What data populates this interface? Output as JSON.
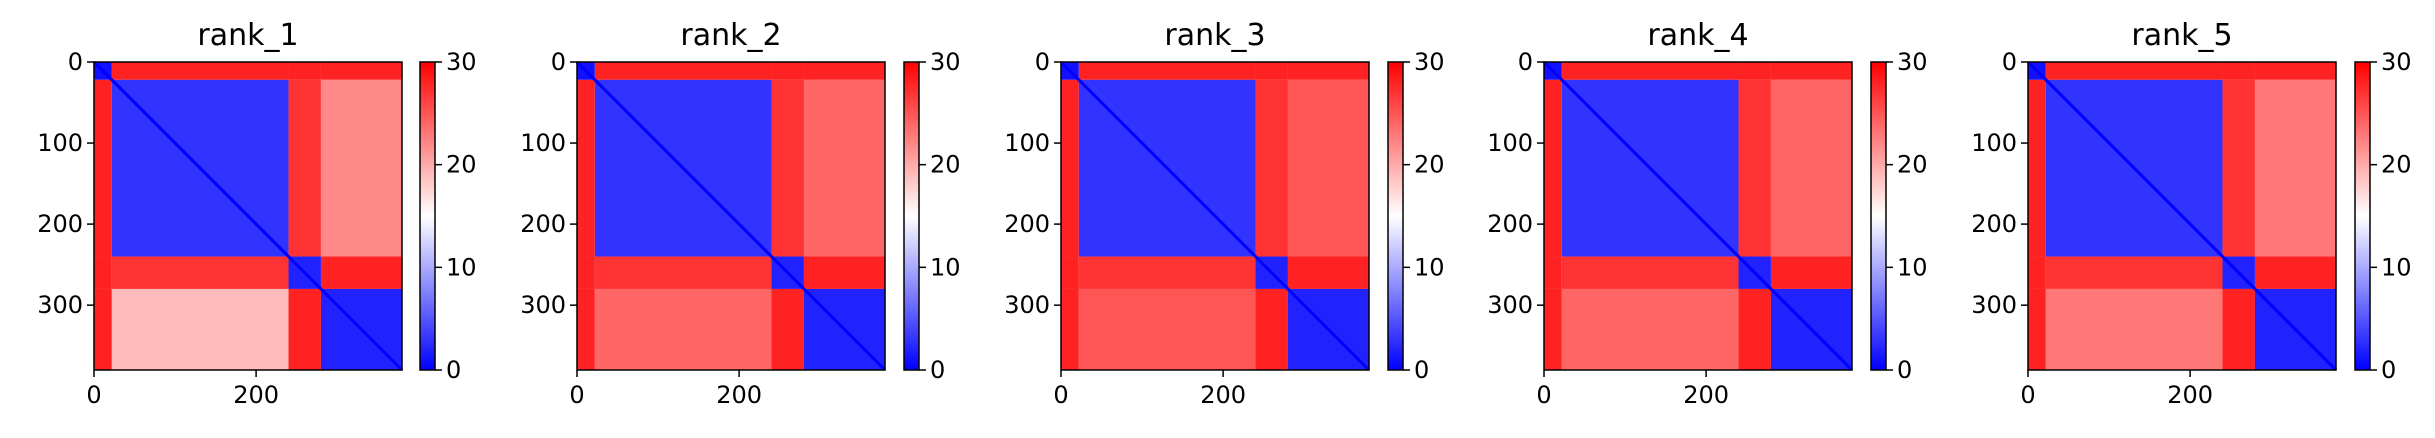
{
  "figure": {
    "colormap": "bwr",
    "colors": {
      "low": "#0000ff",
      "mid": "#ffffff",
      "high": "#ff0000"
    }
  },
  "chart_data": [
    {
      "type": "heatmap",
      "title": "rank_1",
      "size": 380,
      "xticks": [
        0,
        200
      ],
      "yticks": [
        0,
        100,
        200,
        300
      ],
      "colorbar": {
        "min": 0,
        "max": 30,
        "ticks": [
          0,
          10,
          20,
          30
        ]
      },
      "domains": [
        [
          0,
          22
        ],
        [
          22,
          240
        ],
        [
          240,
          280
        ],
        [
          280,
          380
        ]
      ],
      "block_values": [
        [
          1,
          28,
          28,
          28
        ],
        [
          28,
          3,
          27,
          22
        ],
        [
          28,
          27,
          2,
          28
        ],
        [
          28,
          19,
          28,
          2
        ]
      ]
    },
    {
      "type": "heatmap",
      "title": "rank_2",
      "size": 380,
      "xticks": [
        0,
        200
      ],
      "yticks": [
        0,
        100,
        200,
        300
      ],
      "colorbar": {
        "min": 0,
        "max": 30,
        "ticks": [
          0,
          10,
          20,
          30
        ]
      },
      "domains": [
        [
          0,
          22
        ],
        [
          22,
          240
        ],
        [
          240,
          280
        ],
        [
          280,
          380
        ]
      ],
      "block_values": [
        [
          1,
          28,
          28,
          28
        ],
        [
          28,
          3,
          27,
          24
        ],
        [
          28,
          27,
          2,
          28
        ],
        [
          28,
          24,
          28,
          2
        ]
      ]
    },
    {
      "type": "heatmap",
      "title": "rank_3",
      "size": 380,
      "xticks": [
        0,
        200
      ],
      "yticks": [
        0,
        100,
        200,
        300
      ],
      "colorbar": {
        "min": 0,
        "max": 30,
        "ticks": [
          0,
          10,
          20,
          30
        ]
      },
      "domains": [
        [
          0,
          22
        ],
        [
          22,
          240
        ],
        [
          240,
          280
        ],
        [
          280,
          380
        ]
      ],
      "block_values": [
        [
          1,
          28,
          28,
          28
        ],
        [
          28,
          3,
          27,
          25
        ],
        [
          28,
          27,
          2,
          28
        ],
        [
          28,
          25,
          28,
          2
        ]
      ]
    },
    {
      "type": "heatmap",
      "title": "rank_4",
      "size": 380,
      "xticks": [
        0,
        200
      ],
      "yticks": [
        0,
        100,
        200,
        300
      ],
      "colorbar": {
        "min": 0,
        "max": 30,
        "ticks": [
          0,
          10,
          20,
          30
        ]
      },
      "domains": [
        [
          0,
          22
        ],
        [
          22,
          240
        ],
        [
          240,
          280
        ],
        [
          280,
          380
        ]
      ],
      "block_values": [
        [
          1,
          28,
          28,
          28
        ],
        [
          28,
          3,
          27,
          24
        ],
        [
          28,
          27,
          2,
          28
        ],
        [
          28,
          24,
          28,
          2
        ]
      ]
    },
    {
      "type": "heatmap",
      "title": "rank_5",
      "size": 380,
      "xticks": [
        0,
        200
      ],
      "yticks": [
        0,
        100,
        200,
        300
      ],
      "colorbar": {
        "min": 0,
        "max": 30,
        "ticks": [
          0,
          10,
          20,
          30
        ]
      },
      "domains": [
        [
          0,
          22
        ],
        [
          22,
          240
        ],
        [
          240,
          280
        ],
        [
          280,
          380
        ]
      ],
      "block_values": [
        [
          1,
          28,
          28,
          28
        ],
        [
          28,
          3,
          27,
          23
        ],
        [
          28,
          27,
          2,
          28
        ],
        [
          28,
          23,
          28,
          2
        ]
      ]
    }
  ]
}
